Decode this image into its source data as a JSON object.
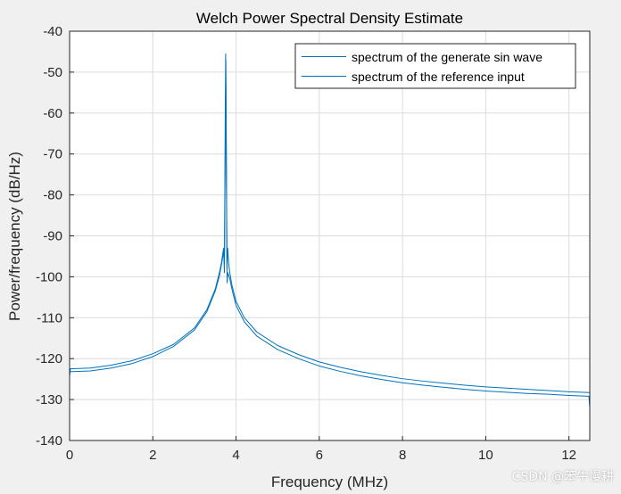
{
  "chart_data": {
    "type": "line",
    "title": "Welch Power Spectral Density Estimate",
    "xlabel": "Frequency (MHz)",
    "ylabel": "Power/frequency (dB/Hz)",
    "xlim": [
      0,
      12.5
    ],
    "ylim": [
      -140,
      -40
    ],
    "xticks": [
      0,
      2,
      4,
      6,
      8,
      10,
      12
    ],
    "yticks": [
      -40,
      -50,
      -60,
      -70,
      -80,
      -90,
      -100,
      -110,
      -120,
      -130,
      -140
    ],
    "grid": true,
    "legend_position": "top-right",
    "series": [
      {
        "name": "spectrum of the generate sin wave",
        "color": "#0072bd",
        "x": [
          0,
          0.02,
          0.5,
          1,
          1.5,
          2,
          2.5,
          3,
          3.3,
          3.5,
          3.6,
          3.65,
          3.7,
          3.72,
          3.74,
          3.75,
          3.76,
          3.78,
          3.8,
          3.82,
          3.85,
          3.9,
          4,
          4.2,
          4.5,
          5,
          5.5,
          6,
          6.5,
          7,
          7.5,
          8,
          8.5,
          9,
          9.5,
          10,
          10.5,
          11,
          11.5,
          12,
          12.5
        ],
        "y": [
          -124.3,
          -122.5,
          -122.3,
          -121.6,
          -120.5,
          -118.8,
          -116.5,
          -112.5,
          -108,
          -103,
          -99,
          -96.5,
          -93,
          -99,
          -60,
          -45.5,
          -60,
          -98,
          -93,
          -96.5,
          -99,
          -102,
          -106,
          -110,
          -113.5,
          -116.8,
          -119,
          -120.8,
          -122.1,
          -123.2,
          -124.1,
          -124.9,
          -125.5,
          -126,
          -126.5,
          -126.9,
          -127.2,
          -127.5,
          -127.8,
          -128.1,
          -128.3
        ]
      },
      {
        "name": "spectrum of the reference input",
        "color": "#0072bd",
        "x": [
          0,
          0.5,
          1,
          1.5,
          2,
          2.5,
          3,
          3.3,
          3.5,
          3.6,
          3.65,
          3.7,
          3.72,
          3.74,
          3.755,
          3.77,
          3.785,
          3.8,
          3.85,
          3.9,
          4,
          4.2,
          4.5,
          5,
          5.5,
          6,
          6.5,
          7,
          7.5,
          8,
          8.5,
          9,
          9.5,
          10,
          10.5,
          11,
          11.5,
          12,
          12.48,
          12.5
        ],
        "y": [
          -123.2,
          -123,
          -122.3,
          -121.2,
          -119.5,
          -117,
          -113,
          -108.5,
          -103.5,
          -99.8,
          -97,
          -94,
          -97,
          -70,
          -47,
          -75,
          -101.5,
          -99,
          -100.5,
          -103,
          -107,
          -111,
          -114.5,
          -117.8,
          -120,
          -121.8,
          -123.1,
          -124.2,
          -125.1,
          -125.9,
          -126.5,
          -127,
          -127.5,
          -127.9,
          -128.2,
          -128.5,
          -128.7,
          -129,
          -129.2,
          -132
        ]
      }
    ]
  },
  "watermark": "CSDN @笨牛慢耕"
}
